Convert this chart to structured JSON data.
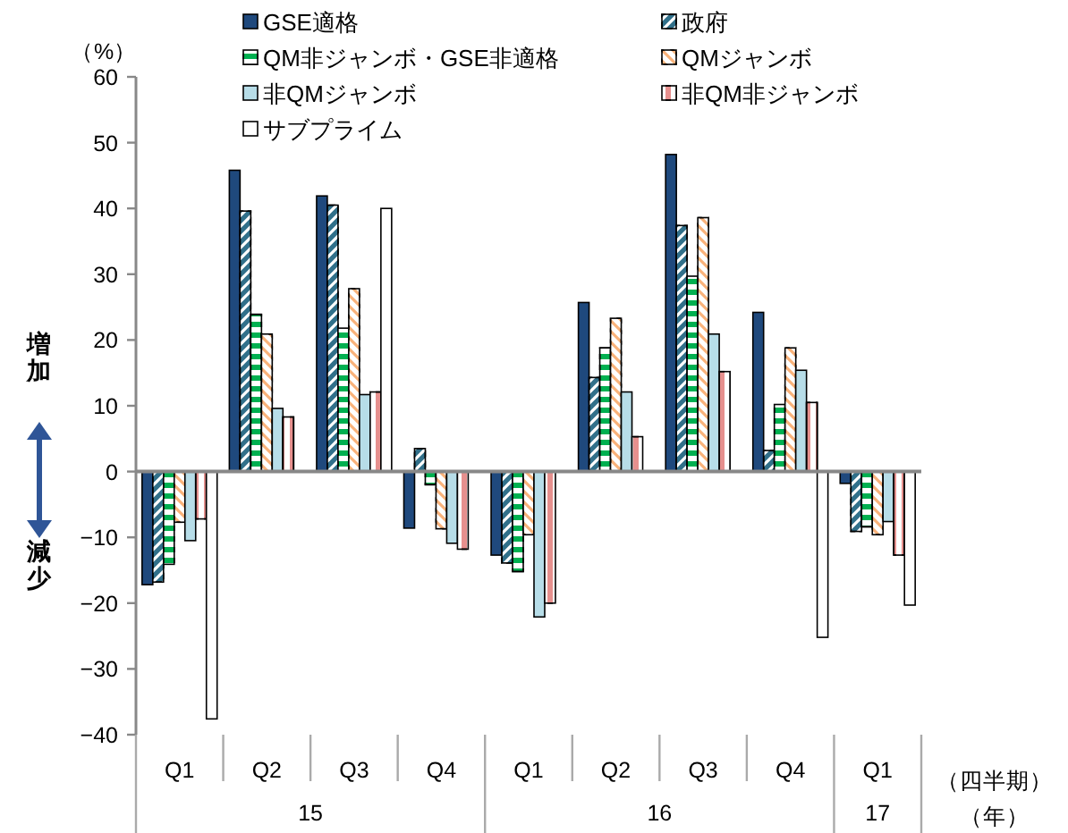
{
  "chart_data": {
    "type": "bar",
    "ylabel": "（%）",
    "xlabel": "（四半期）",
    "categories": [
      "Q1",
      "Q2",
      "Q3",
      "Q4",
      "Q1",
      "Q2",
      "Q3",
      "Q4",
      "Q1"
    ],
    "series": [
      {
        "name": "GSE適格",
        "color": "#1f497d",
        "values": [
          -17.2,
          45.8,
          41.9,
          -8.6,
          -12.7,
          25.7,
          48.2,
          24.2,
          -1.8
        ]
      },
      {
        "name": "政府",
        "color": "#31708a",
        "values": [
          -16.8,
          39.6,
          40.5,
          3.5,
          -13.9,
          14.3,
          37.4,
          3.2,
          -9.1
        ]
      },
      {
        "name": "QM非ジャンボ・GSE非適格",
        "color": "#00b050",
        "values": [
          -14.1,
          23.9,
          21.8,
          -2.0,
          -15.2,
          18.8,
          29.7,
          10.2,
          -8.4
        ]
      },
      {
        "name": "QMジャンボ",
        "color": "#f9b27a",
        "values": [
          -7.7,
          20.9,
          27.8,
          -8.7,
          -9.6,
          23.3,
          38.6,
          18.8,
          -9.6
        ]
      },
      {
        "name": "非QMジャンボ",
        "color": "#b7dde8",
        "values": [
          -10.5,
          9.6,
          11.7,
          -10.9,
          -22.1,
          12.1,
          20.9,
          15.4,
          -7.6
        ]
      },
      {
        "name": "非QM非ジャンボ",
        "color": "#e6908e",
        "values": [
          -7.2,
          8.3,
          12.1,
          -11.8,
          -20.0,
          5.3,
          15.2,
          10.5,
          -12.7
        ]
      },
      {
        "name": "サブプライム",
        "color": "#ffffff",
        "values": [
          -37.6,
          null,
          40.0,
          null,
          null,
          null,
          null,
          -25.2,
          -20.3
        ]
      }
    ],
    "ylim": [
      -40,
      60
    ],
    "yticks": [
      -40,
      -30,
      -20,
      -10,
      0,
      10,
      20,
      30,
      40,
      50,
      60
    ],
    "legend": "top",
    "annotations": [
      "増加",
      "減少",
      "15",
      "16",
      "17",
      "（年）"
    ]
  }
}
